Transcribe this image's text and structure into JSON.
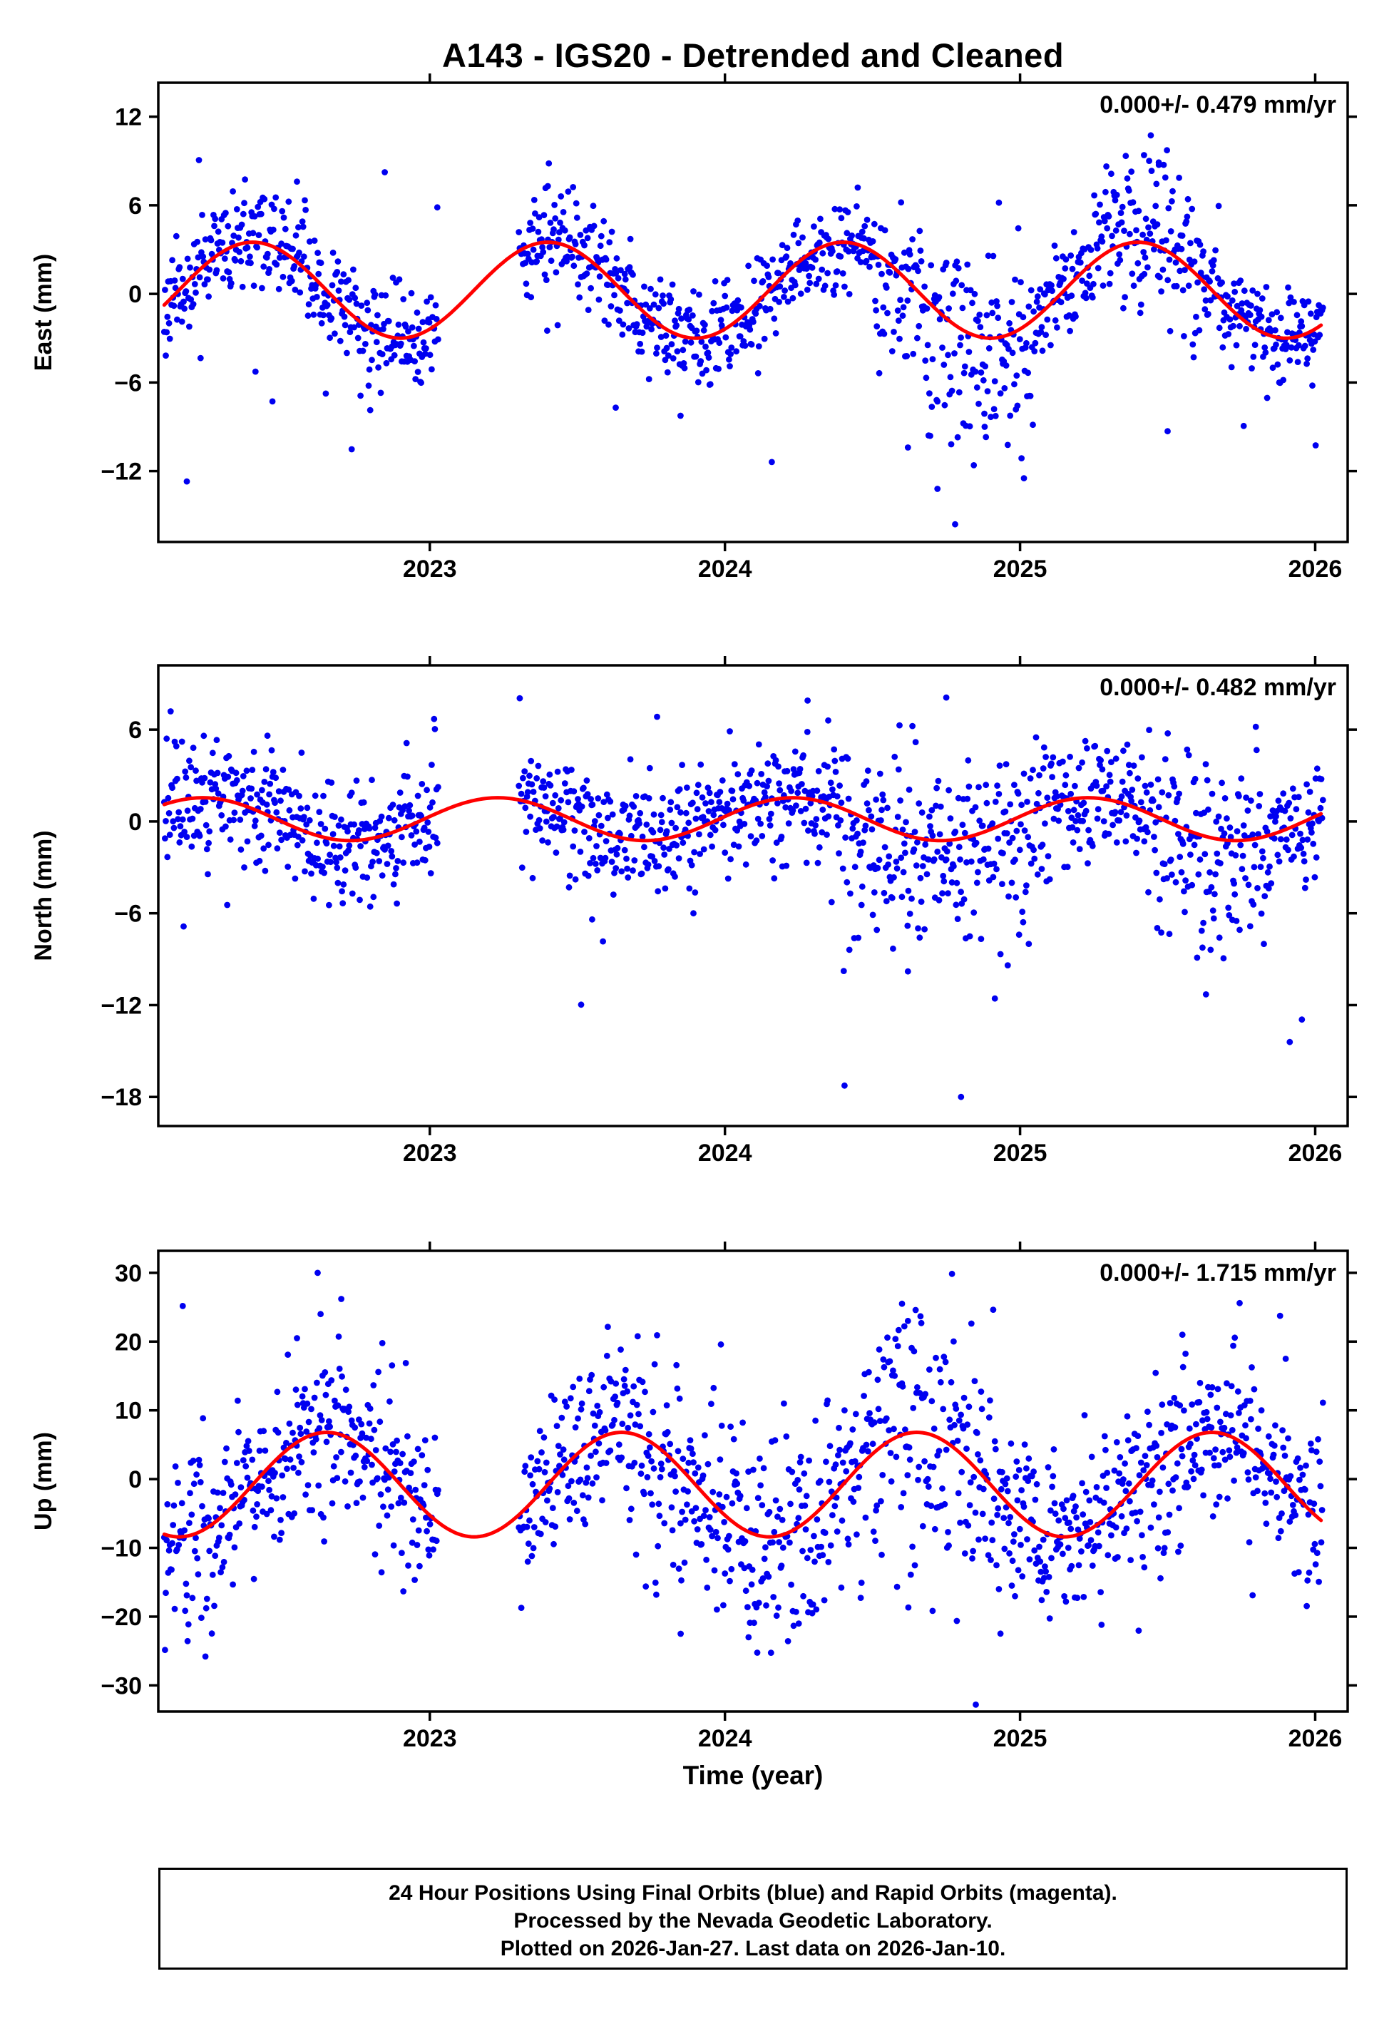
{
  "title": "A143 - IGS20 - Detrended and Cleaned",
  "xlabel": "Time (year)",
  "caption": {
    "lines": [
      "24 Hour Positions Using Final Orbits (blue) and Rapid Orbits (magenta).",
      "Processed by the Nevada Geodetic Laboratory.",
      "Plotted on 2026-Jan-27. Last data on 2026-Jan-10."
    ]
  },
  "colors": {
    "points": "#0000f0",
    "curve": "#ff0000",
    "frame": "#000000",
    "text": "#000000"
  },
  "chart_data": [
    {
      "type": "scatter",
      "component": "east",
      "ylabel": "East (mm)",
      "annotation": "0.000+/- 0.479 mm/yr",
      "xlim": [
        2022.08,
        2026.11
      ],
      "ylim": [
        -16.8,
        14.3
      ],
      "xticks": [
        2023,
        2024,
        2025,
        2026
      ],
      "xtick_labels": [
        "2023",
        "2024",
        "2025",
        "2026"
      ],
      "yticks": [
        12,
        6,
        0,
        -6,
        -12
      ],
      "ytick_labels": [
        "12",
        "6",
        "0",
        "−6",
        "−12"
      ],
      "grid": false,
      "model": {
        "mean": 0.25,
        "annual_amp": 3.25,
        "annual_peak": 0.4,
        "semi_amp": 0,
        "semi_peak": 0
      },
      "sampling": {
        "start": 2022.1,
        "end": 2026.027,
        "per_year": 365.25,
        "gaps": [
          [
            2023.03,
            2023.3
          ]
        ]
      },
      "noise": {
        "sigma": 1.6,
        "outlier_prob": 0.015,
        "outlier_min": 4,
        "outlier_max": 12,
        "outlier_neg_frac": 0.8
      },
      "bursts": [
        {
          "start": 2024.5,
          "end": 2025.05,
          "sigma_mult": 1.9,
          "bias": -1.1
        },
        {
          "start": 2025.25,
          "end": 2025.6,
          "sigma_mult": 1.7,
          "bias": 0.9
        }
      ],
      "extra_points": [
        [
          2024.78,
          -15.6
        ],
        [
          2024.62,
          -10.4
        ],
        [
          2024.88,
          -9.0
        ],
        [
          2025.5,
          -9.3
        ],
        [
          2022.55,
          7.6
        ],
        [
          2023.4,
          7.3
        ],
        [
          2024.45,
          7.2
        ],
        [
          2025.42,
          9.4
        ],
        [
          2025.47,
          8.9
        ],
        [
          2023.63,
          -7.7
        ],
        [
          2024.72,
          -13.2
        ]
      ],
      "seed": 11
    },
    {
      "type": "scatter",
      "component": "north",
      "ylabel": "North (mm)",
      "annotation": "0.000+/- 0.482 mm/yr",
      "xlim": [
        2022.08,
        2026.11
      ],
      "ylim": [
        -19.9,
        10.2
      ],
      "xticks": [
        2023,
        2024,
        2025,
        2026
      ],
      "xtick_labels": [
        "2023",
        "2024",
        "2025",
        "2026"
      ],
      "yticks": [
        6,
        0,
        -6,
        -12,
        -18
      ],
      "ytick_labels": [
        "6",
        "0",
        "−6",
        "−12",
        "−18"
      ],
      "grid": false,
      "model": {
        "mean": 0.15,
        "annual_amp": 1.4,
        "annual_peak": 0.23,
        "semi_amp": 0,
        "semi_peak": 0
      },
      "sampling": {
        "start": 2022.1,
        "end": 2026.027,
        "per_year": 365.25,
        "gaps": [
          [
            2023.03,
            2023.3
          ]
        ]
      },
      "noise": {
        "sigma": 1.9,
        "outlier_prob": 0.012,
        "outlier_min": 4,
        "outlier_max": 14,
        "outlier_neg_frac": 0.85
      },
      "bursts": [
        {
          "start": 2024.4,
          "end": 2025.1,
          "sigma_mult": 1.7,
          "bias": -1.0
        },
        {
          "start": 2025.45,
          "end": 2025.85,
          "sigma_mult": 1.6,
          "bias": -0.7
        }
      ],
      "extra_points": [
        [
          2024.8,
          -18.0
        ],
        [
          2024.62,
          -9.8
        ],
        [
          2025.63,
          -11.3
        ],
        [
          2025.6,
          -8.9
        ],
        [
          2024.28,
          7.9
        ],
        [
          2024.75,
          8.1
        ],
        [
          2022.45,
          5.6
        ],
        [
          2023.55,
          -6.4
        ],
        [
          2024.35,
          6.6
        ]
      ],
      "seed": 22
    },
    {
      "type": "scatter",
      "component": "up",
      "ylabel": "Up (mm)",
      "annotation": "0.000+/- 1.715 mm/yr",
      "xlim": [
        2022.08,
        2026.11
      ],
      "ylim": [
        -33.8,
        33.2
      ],
      "xticks": [
        2023,
        2024,
        2025,
        2026
      ],
      "xtick_labels": [
        "2023",
        "2024",
        "2025",
        "2026"
      ],
      "yticks": [
        30,
        20,
        10,
        0,
        -10,
        -20,
        -30
      ],
      "ytick_labels": [
        "30",
        "20",
        "10",
        "0",
        "−10",
        "−20",
        "−30"
      ],
      "grid": false,
      "model": {
        "mean": -0.8,
        "annual_amp": 7.6,
        "annual_peak": 0.65,
        "semi_amp": 0,
        "semi_peak": 0
      },
      "sampling": {
        "start": 2022.1,
        "end": 2026.027,
        "per_year": 365.25,
        "gaps": [
          [
            2023.03,
            2023.3
          ]
        ]
      },
      "noise": {
        "sigma": 6.2,
        "outlier_prob": 0.02,
        "outlier_min": 6,
        "outlier_max": 24,
        "outlier_neg_frac": 0.6
      },
      "bursts": [
        {
          "start": 2023.75,
          "end": 2024.35,
          "sigma_mult": 1.35,
          "bias": -2.5
        },
        {
          "start": 2024.45,
          "end": 2024.95,
          "sigma_mult": 1.5,
          "bias": 0
        }
      ],
      "extra_points": [
        [
          2024.85,
          -32.8
        ],
        [
          2022.7,
          26.2
        ],
        [
          2022.63,
          24.0
        ],
        [
          2024.6,
          25.5
        ],
        [
          2024.62,
          23.0
        ],
        [
          2022.55,
          20.5
        ],
        [
          2023.85,
          -22.5
        ],
        [
          2024.08,
          -23.0
        ],
        [
          2025.9,
          17.5
        ],
        [
          2024.25,
          -21.0
        ],
        [
          2022.62,
          30.0
        ],
        [
          2025.55,
          21.0
        ]
      ],
      "seed": 33
    }
  ]
}
